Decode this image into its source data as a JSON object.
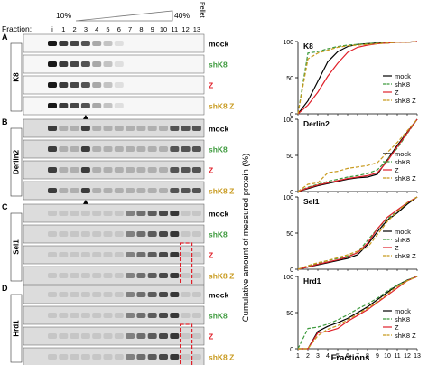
{
  "figure": {
    "fraction_label": "Fraction:",
    "gradient_start": "10%",
    "gradient_end": "40%",
    "pellet_label": "Pellet",
    "fractions": [
      "i",
      "1",
      "2",
      "3",
      "4",
      "5",
      "6",
      "7",
      "8",
      "9",
      "10",
      "11",
      "12",
      "13"
    ],
    "colors": {
      "mock": "#000000",
      "shK8": "#3d9a3d",
      "Z": "#e0202a",
      "shK8 Z": "#c89a1e",
      "highlight": "#e0202a"
    },
    "panels": [
      {
        "letter": "A",
        "protein": "K8",
        "rows": [
          "mock",
          "shK8",
          "Z",
          "shK8 Z"
        ],
        "arrow": "up-arrow-icon"
      },
      {
        "letter": "B",
        "protein": "Derlin2",
        "rows": [
          "mock",
          "shK8",
          "Z",
          "shK8 Z"
        ],
        "arrow": "up-arrow-icon"
      },
      {
        "letter": "C",
        "protein": "Sel1",
        "rows": [
          "mock",
          "shK8",
          "Z",
          "shK8 Z"
        ]
      },
      {
        "letter": "D",
        "protein": "Hrd1",
        "rows": [
          "mock",
          "shK8",
          "Z",
          "shK8 Z"
        ]
      }
    ]
  },
  "chart_data": {
    "type": "line",
    "ylabel": "Cumulative amount of measured protein (%)",
    "xlabel": "Fractions",
    "x": [
      1,
      2,
      3,
      4,
      5,
      6,
      7,
      8,
      9,
      10,
      11,
      12,
      13
    ],
    "xlim": [
      1,
      13
    ],
    "ylim": [
      0,
      100
    ],
    "yticks": [
      0,
      50,
      100
    ],
    "legend": "bottom-right",
    "charts": [
      {
        "title": "K8",
        "series": [
          {
            "name": "mock",
            "values": [
              0,
              18,
              45,
              72,
              86,
              93,
              96,
              97,
              98,
              98,
              99,
              99,
              100
            ]
          },
          {
            "name": "shK8",
            "values": [
              0,
              84,
              86,
              90,
              93,
              95,
              96,
              97,
              98,
              98,
              99,
              99,
              100
            ]
          },
          {
            "name": "Z",
            "values": [
              0,
              12,
              30,
              52,
              70,
              85,
              92,
              95,
              97,
              98,
              99,
              99,
              100
            ]
          },
          {
            "name": "shK8 Z",
            "values": [
              0,
              76,
              84,
              88,
              92,
              94,
              95,
              96,
              97,
              98,
              99,
              99,
              100
            ]
          }
        ]
      },
      {
        "title": "Derlin2",
        "series": [
          {
            "name": "mock",
            "values": [
              0,
              4,
              8,
              11,
              14,
              17,
              19,
              20,
              24,
              44,
              64,
              82,
              100
            ]
          },
          {
            "name": "shK8",
            "values": [
              0,
              6,
              10,
              14,
              17,
              20,
              22,
              25,
              30,
              44,
              60,
              80,
              100
            ]
          },
          {
            "name": "Z",
            "values": [
              0,
              5,
              9,
              12,
              15,
              18,
              20,
              22,
              26,
              42,
              62,
              81,
              100
            ]
          },
          {
            "name": "shK8 Z",
            "values": [
              0,
              10,
              12,
              26,
              28,
              32,
              34,
              36,
              40,
              54,
              68,
              84,
              100
            ]
          }
        ]
      },
      {
        "title": "Sel1",
        "series": [
          {
            "name": "mock",
            "values": [
              0,
              3,
              6,
              9,
              12,
              15,
              20,
              34,
              52,
              68,
              78,
              90,
              100
            ]
          },
          {
            "name": "shK8",
            "values": [
              0,
              4,
              8,
              12,
              15,
              18,
              23,
              40,
              56,
              70,
              80,
              92,
              100
            ]
          },
          {
            "name": "Z",
            "values": [
              0,
              3,
              7,
              10,
              13,
              17,
              23,
              36,
              56,
              72,
              82,
              92,
              100
            ]
          },
          {
            "name": "shK8 Z",
            "values": [
              0,
              5,
              9,
              12,
              16,
              20,
              25,
              30,
              48,
              66,
              80,
              92,
              100
            ]
          }
        ]
      },
      {
        "title": "Hrd1",
        "series": [
          {
            "name": "mock",
            "values": [
              0,
              0,
              24,
              31,
              36,
              42,
              50,
              58,
              68,
              78,
              88,
              95,
              100
            ]
          },
          {
            "name": "shK8",
            "values": [
              0,
              28,
              30,
              34,
              40,
              47,
              55,
              62,
              70,
              80,
              88,
              95,
              100
            ]
          },
          {
            "name": "Z",
            "values": [
              0,
              0,
              22,
              24,
              28,
              38,
              46,
              54,
              64,
              74,
              84,
              94,
              100
            ]
          },
          {
            "name": "shK8 Z",
            "values": [
              0,
              0,
              18,
              27,
              32,
              40,
              48,
              56,
              65,
              76,
              86,
              94,
              100
            ]
          }
        ]
      }
    ]
  }
}
